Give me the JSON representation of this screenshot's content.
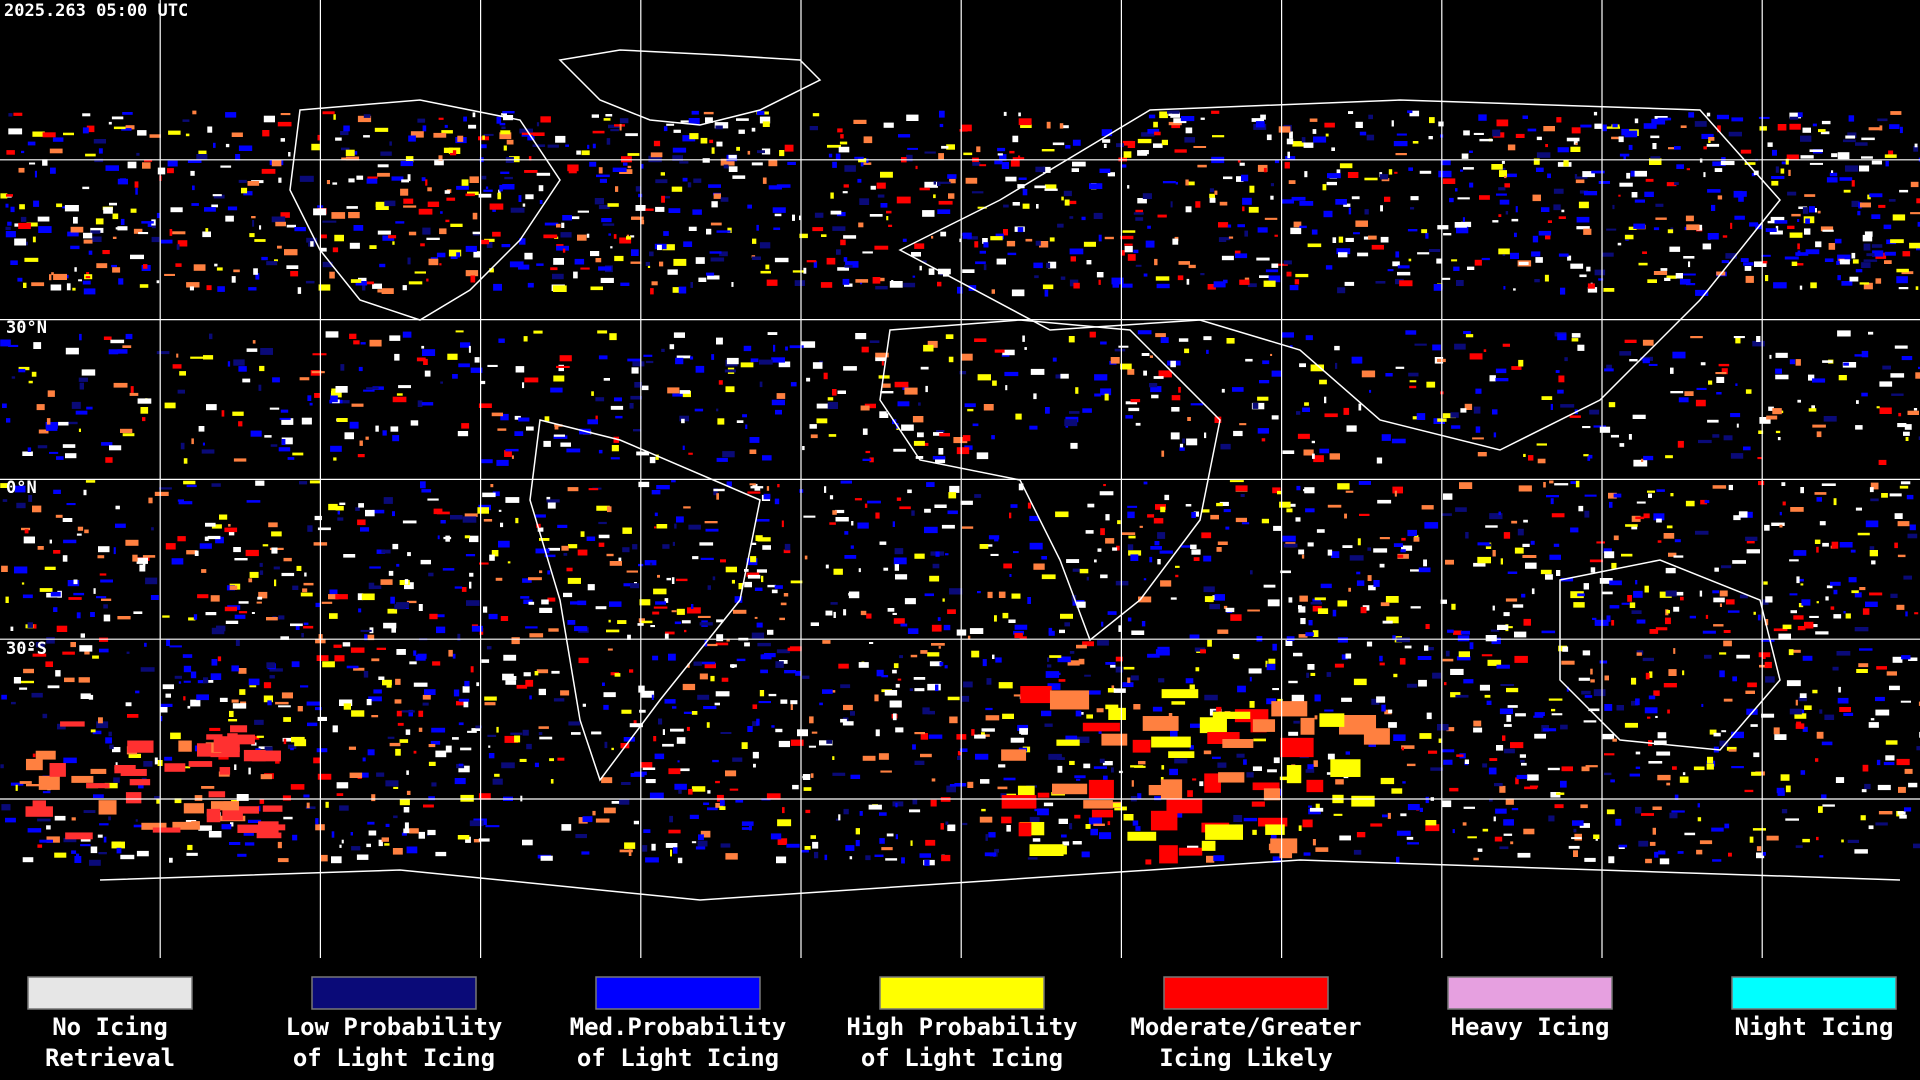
{
  "timestamp": "2025.263 05:00 UTC",
  "latitude_labels": [
    "30°N",
    "0°N",
    "30°S"
  ],
  "legend": [
    {
      "lines": [
        "No Icing",
        "Retrieval"
      ],
      "color": "#e6e6e6"
    },
    {
      "lines": [
        "Low Probability",
        "of Light Icing"
      ],
      "color": "#0a0a78"
    },
    {
      "lines": [
        "Med.Probability",
        "of Light Icing"
      ],
      "color": "#0000ff"
    },
    {
      "lines": [
        "High Probability",
        "of Light Icing"
      ],
      "color": "#ffff00"
    },
    {
      "lines": [
        "Moderate/Greater",
        "Icing Likely"
      ],
      "color": "#ff0000"
    },
    {
      "lines": [
        "Heavy Icing"
      ],
      "color": "#e6a0e0"
    },
    {
      "lines": [
        "Night Icing"
      ],
      "color": "#00ffff"
    }
  ]
}
